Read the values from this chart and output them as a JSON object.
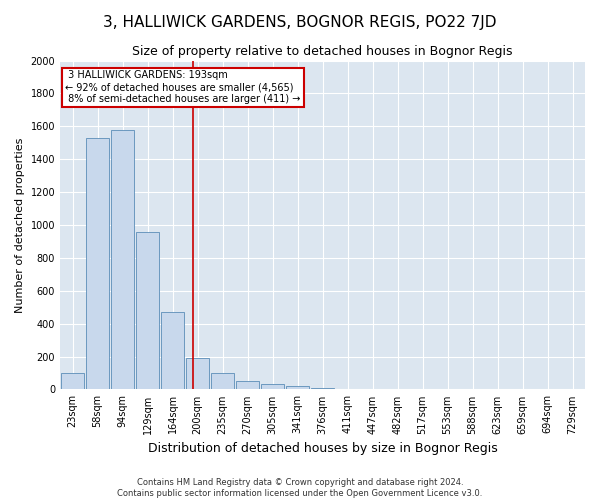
{
  "title": "3, HALLIWICK GARDENS, BOGNOR REGIS, PO22 7JD",
  "subtitle": "Size of property relative to detached houses in Bognor Regis",
  "xlabel": "Distribution of detached houses by size in Bognor Regis",
  "ylabel": "Number of detached properties",
  "footnote1": "Contains HM Land Registry data © Crown copyright and database right 2024.",
  "footnote2": "Contains public sector information licensed under the Open Government Licence v3.0.",
  "categories": [
    "23sqm",
    "58sqm",
    "94sqm",
    "129sqm",
    "164sqm",
    "200sqm",
    "235sqm",
    "270sqm",
    "305sqm",
    "341sqm",
    "376sqm",
    "411sqm",
    "447sqm",
    "482sqm",
    "517sqm",
    "553sqm",
    "588sqm",
    "623sqm",
    "659sqm",
    "694sqm",
    "729sqm"
  ],
  "values": [
    100,
    1530,
    1580,
    960,
    470,
    190,
    100,
    50,
    30,
    20,
    10,
    5,
    0,
    0,
    0,
    0,
    0,
    0,
    0,
    0,
    0
  ],
  "bar_color": "#c8d8ec",
  "bar_edge_color": "#5b8db8",
  "vline_color": "#cc0000",
  "annotation_box_edge_color": "#cc0000",
  "property_size_label": "3 HALLIWICK GARDENS: 193sqm",
  "pct_smaller": "92% of detached houses are smaller (4,565)",
  "pct_larger": "8% of semi-detached houses are larger (411)",
  "ylim": [
    0,
    2000
  ],
  "yticks": [
    0,
    200,
    400,
    600,
    800,
    1000,
    1200,
    1400,
    1600,
    1800,
    2000
  ],
  "bg_color": "#dce6f0",
  "fig_color": "#ffffff",
  "title_fontsize": 11,
  "subtitle_fontsize": 9,
  "ylabel_fontsize": 8,
  "xlabel_fontsize": 9,
  "tick_fontsize": 7,
  "footnote_fontsize": 6,
  "vline_x": 4.83
}
